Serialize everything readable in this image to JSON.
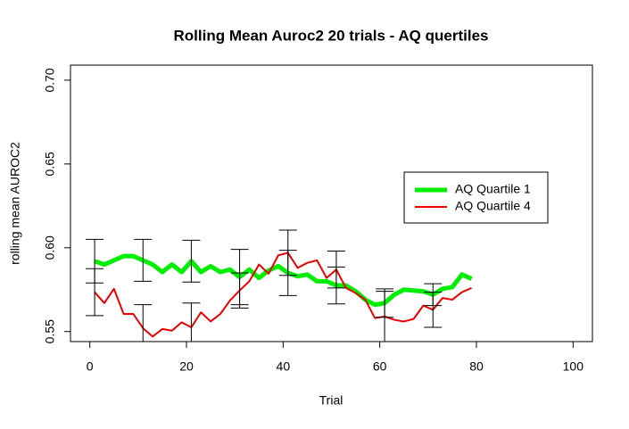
{
  "chart_data": {
    "type": "line",
    "title": "Rolling Mean Auroc2 20 trials - AQ quertiles",
    "x_label": "Trial",
    "y_label": "rolling mean AUROC2",
    "x": [
      1,
      3,
      5,
      7,
      9,
      11,
      13,
      15,
      17,
      19,
      21,
      23,
      25,
      27,
      29,
      31,
      33,
      35,
      37,
      39,
      41,
      43,
      45,
      47,
      49,
      51,
      53,
      55,
      57,
      59,
      61,
      63,
      65,
      67,
      69,
      71,
      73,
      75,
      77,
      79
    ],
    "series": [
      {
        "name": "AQ Quartile 1",
        "color": "#00ee00",
        "width": 5,
        "values": [
          0.592,
          0.59,
          0.5925,
          0.595,
          0.595,
          0.5925,
          0.59,
          0.5855,
          0.59,
          0.5855,
          0.592,
          0.5855,
          0.589,
          0.5855,
          0.587,
          0.5825,
          0.587,
          0.582,
          0.5865,
          0.589,
          0.585,
          0.583,
          0.584,
          0.58,
          0.58,
          0.5775,
          0.5775,
          0.574,
          0.569,
          0.566,
          0.567,
          0.572,
          0.575,
          0.5745,
          0.574,
          0.572,
          0.5755,
          0.5765,
          0.584,
          0.5815
        ],
        "errors": [
          0.013,
          null,
          null,
          null,
          null,
          0.0125,
          null,
          null,
          null,
          null,
          0.0125,
          null,
          null,
          null,
          null,
          0.0165,
          null,
          null,
          null,
          null,
          0.0135,
          null,
          null,
          null,
          null,
          0.011,
          null,
          null,
          null,
          null,
          0.0085,
          null,
          null,
          null,
          null,
          0.0065,
          null,
          null,
          null,
          null
        ]
      },
      {
        "name": "AQ Quartile 4",
        "color": "#ee0000",
        "width": 2,
        "values": [
          0.5735,
          0.567,
          0.5755,
          0.5605,
          0.5605,
          0.552,
          0.547,
          0.5515,
          0.5505,
          0.5555,
          0.5525,
          0.5615,
          0.556,
          0.5605,
          0.5685,
          0.5745,
          0.58,
          0.59,
          0.5845,
          0.5955,
          0.597,
          0.588,
          0.591,
          0.5925,
          0.582,
          0.587,
          0.576,
          0.573,
          0.569,
          0.558,
          0.559,
          0.557,
          0.556,
          0.5575,
          0.5655,
          0.563,
          0.57,
          0.569,
          0.5735,
          0.576
        ],
        "errors": [
          0.014,
          null,
          null,
          null,
          null,
          0.014,
          null,
          null,
          null,
          null,
          0.0145,
          null,
          null,
          null,
          null,
          0.0105,
          null,
          null,
          null,
          null,
          0.0135,
          null,
          null,
          null,
          null,
          0.011,
          null,
          null,
          null,
          null,
          0.015,
          null,
          null,
          null,
          null,
          0.0105,
          null,
          null,
          null,
          null
        ]
      }
    ],
    "xlim": [
      -4,
      104
    ],
    "xticks": [
      0,
      20,
      40,
      60,
      80,
      100
    ],
    "ylim": [
      0.544,
      0.709
    ],
    "yticks": [
      0.55,
      {
        "value": 0.6,
        "label": "0.60"
      },
      0.65,
      {
        "value": 0.7,
        "label": "0.70"
      }
    ],
    "legend": "right"
  }
}
